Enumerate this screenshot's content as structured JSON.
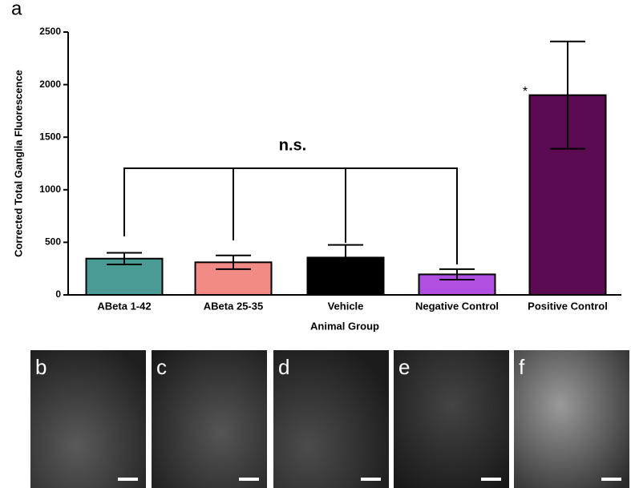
{
  "panel_label": "a",
  "chart_data": {
    "type": "bar",
    "xlabel": "Animal Group",
    "ylabel": "Corrected Total Ganglia Fluorescence",
    "categories": [
      "ABeta 1-42",
      "ABeta 25-35",
      "Vehicle",
      "Negative Control",
      "Positive Control"
    ],
    "values": [
      345,
      310,
      355,
      195,
      1900
    ],
    "errors": [
      55,
      65,
      120,
      50,
      510
    ],
    "colors": [
      "#4a9a95",
      "#f28a86",
      "#000000",
      "#b04fe0",
      "#5c0a52"
    ],
    "ylim": [
      0,
      2500
    ],
    "yticks": [
      0,
      500,
      1000,
      1500,
      2000,
      2500
    ],
    "annotations": [
      "n.s.",
      "*"
    ]
  },
  "image_panels": [
    "b",
    "c",
    "d",
    "e",
    "f"
  ]
}
